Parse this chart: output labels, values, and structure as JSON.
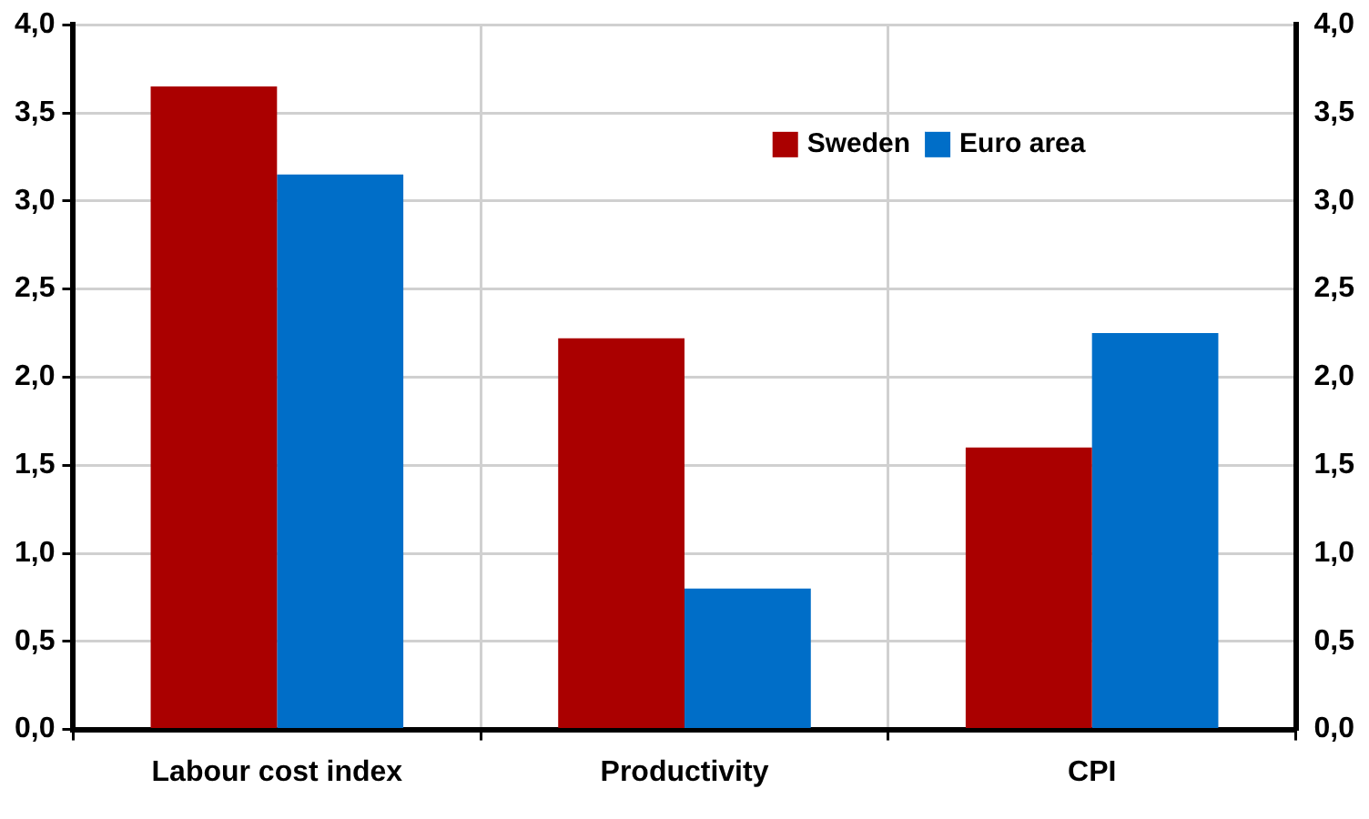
{
  "chart_data": {
    "type": "bar",
    "categories": [
      "Labour cost index",
      "Productivity",
      "CPI"
    ],
    "series": [
      {
        "name": "Sweden",
        "color": "#aa0000",
        "values": [
          3.65,
          2.22,
          1.6
        ]
      },
      {
        "name": "Euro area",
        "color": "#006ec8",
        "values": [
          3.15,
          0.8,
          2.25
        ]
      }
    ],
    "ylim": [
      0,
      4
    ],
    "yticks": [
      {
        "value": 0,
        "label": "0,0"
      },
      {
        "value": 0.5,
        "label": "0,5"
      },
      {
        "value": 1,
        "label": "1,0"
      },
      {
        "value": 1.5,
        "label": "1,5"
      },
      {
        "value": 2,
        "label": "2,0"
      },
      {
        "value": 2.5,
        "label": "2,5"
      },
      {
        "value": 3,
        "label": "3,0"
      },
      {
        "value": 3.5,
        "label": "3,5"
      },
      {
        "value": 4,
        "label": "4,0"
      }
    ],
    "y2lim": [
      0,
      4
    ],
    "y2ticks": [
      {
        "value": 0,
        "label": "0,0"
      },
      {
        "value": 0.5,
        "label": "0,5"
      },
      {
        "value": 1,
        "label": "1,0"
      },
      {
        "value": 1.5,
        "label": "1,5"
      },
      {
        "value": 2,
        "label": "2,0"
      },
      {
        "value": 2.5,
        "label": "2,5"
      },
      {
        "value": 3,
        "label": "3,0"
      },
      {
        "value": 3.5,
        "label": "3,5"
      },
      {
        "value": 4,
        "label": "4,0"
      }
    ],
    "grid": true,
    "legend": "top"
  }
}
